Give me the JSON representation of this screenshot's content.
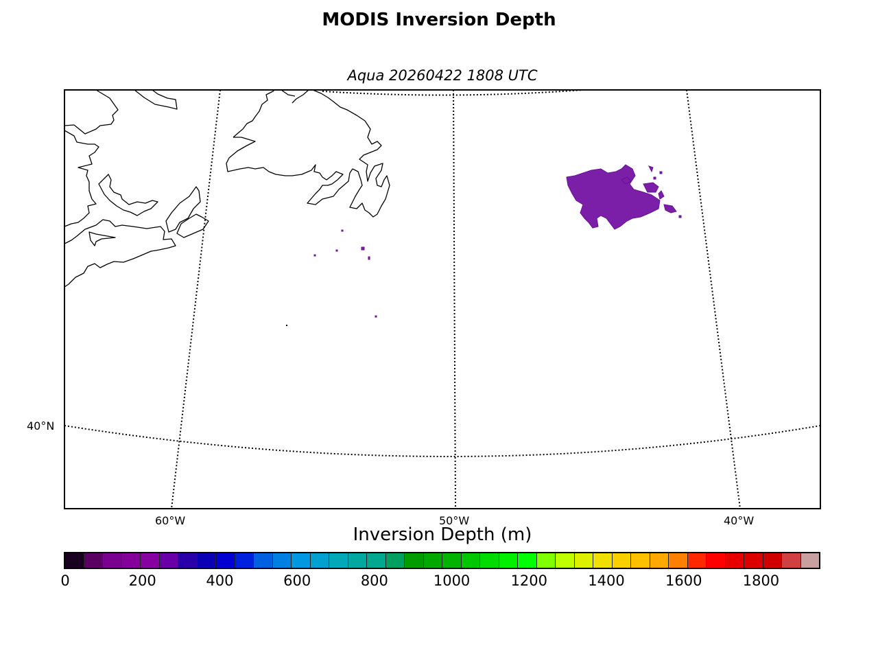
{
  "figure": {
    "title": "MODIS Inversion Depth",
    "subtitle": "Aqua 20260422 1808 UTC"
  },
  "map": {
    "projection": "lambert-conformal",
    "parallels": [
      {
        "label": "40°N",
        "lat": 40
      }
    ],
    "meridians": [
      {
        "label": "60°W",
        "lon": -60
      },
      {
        "label": "50°W",
        "lon": -50
      },
      {
        "label": "40°W",
        "lon": -40
      }
    ],
    "data_patch_color": "#7b1fa8",
    "data_patch_level_m": 200
  },
  "colorbar": {
    "label": "Inversion Depth (m)",
    "min": 0,
    "max": 1950,
    "step": 50,
    "ticks": [
      "0",
      "200",
      "400",
      "600",
      "800",
      "1000",
      "1200",
      "1400",
      "1600",
      "1800"
    ],
    "colors": [
      "#1a0020",
      "#5a0062",
      "#7a0090",
      "#84009a",
      "#8600a2",
      "#6a00a8",
      "#2a00a8",
      "#0a00b4",
      "#0000d0",
      "#0020e0",
      "#0060e0",
      "#0080e0",
      "#0098e0",
      "#00a0d0",
      "#00a8b8",
      "#00a8a0",
      "#00a890",
      "#00a060",
      "#009c00",
      "#00a800",
      "#00b400",
      "#00c800",
      "#00dc00",
      "#00f000",
      "#00ff00",
      "#80ff00",
      "#c0ff00",
      "#dcf000",
      "#f0e000",
      "#f8d000",
      "#ffc000",
      "#ffa800",
      "#ff8000",
      "#ff2800",
      "#ff0000",
      "#e80000",
      "#dc0000",
      "#d00000",
      "#d04040",
      "#c8a0a0"
    ]
  }
}
